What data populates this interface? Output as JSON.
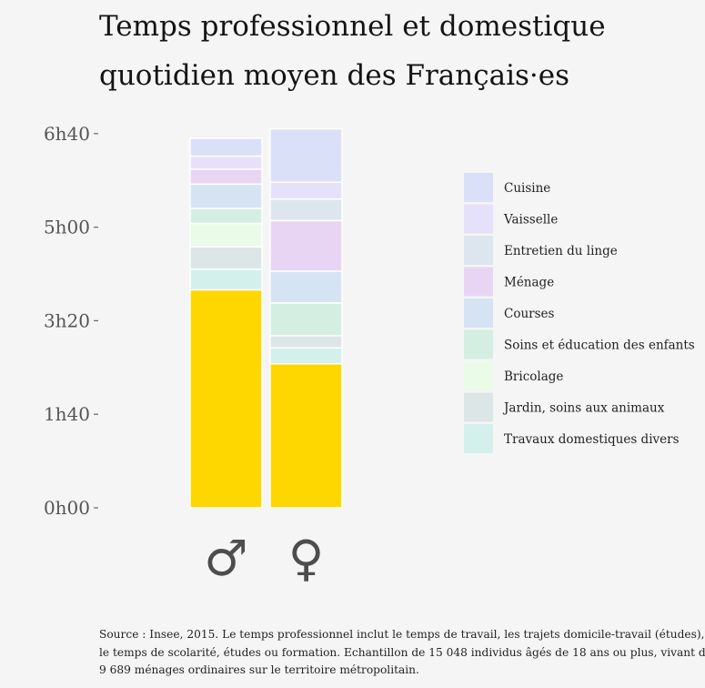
{
  "title": {
    "line1": "Temps professionnel et domestique",
    "line2": "quotidien moyen des Français·es"
  },
  "source": {
    "line1": "Source : Insee, 2015. Le temps professionnel inclut le temps de travail, les trajets domicile-travail (études),",
    "line2": "le temps de scolarité, études ou formation. Echantillon de 15 048 individus âgés de 18 ans ou plus, vivant dans",
    "line3": "9 689 ménages ordinaires sur le territoire métropolitain."
  },
  "chart_data": {
    "type": "bar",
    "stacked": true,
    "categories": [
      "♂",
      "♀"
    ],
    "yticks": [
      {
        "value": 0,
        "label": "0h00"
      },
      {
        "value": 100,
        "label": "1h40"
      },
      {
        "value": 200,
        "label": "3h20"
      },
      {
        "value": 300,
        "label": "5h00"
      },
      {
        "value": 400,
        "label": "6h40"
      }
    ],
    "ylim": [
      0,
      410
    ],
    "unit": "minutes",
    "legend_position": "right",
    "series": [
      {
        "key": "professionnel",
        "color": "#ffd700",
        "values": [
          233,
          154
        ]
      },
      {
        "key": "divers",
        "name": "Travaux domestiques divers",
        "color": "#d4f0ed",
        "values": [
          22,
          17
        ]
      },
      {
        "key": "jardin",
        "name": "Jardin, soins aux animaux",
        "color": "#dce6e6",
        "values": [
          24,
          13
        ]
      },
      {
        "key": "bricolage",
        "name": "Bricolage",
        "color": "#eafbe7",
        "values": [
          25,
          0
        ]
      },
      {
        "key": "soins",
        "name": "Soins et éducation des enfants",
        "color": "#d5eee2",
        "values": [
          16,
          35
        ]
      },
      {
        "key": "courses",
        "name": "Courses",
        "color": "#d5e3f3",
        "values": [
          26,
          34
        ]
      },
      {
        "key": "menage",
        "name": "Ménage",
        "color": "#e8d5f3",
        "values": [
          16,
          54
        ]
      },
      {
        "key": "linge",
        "name": "Entretien du linge",
        "color": "#dde6ee",
        "values": [
          0,
          23
        ]
      },
      {
        "key": "vaisselle",
        "name": "Vaisselle",
        "color": "#e6e1fb",
        "values": [
          14,
          18
        ]
      },
      {
        "key": "cuisine",
        "name": "Cuisine",
        "color": "#d9e0f8",
        "values": [
          19,
          57
        ]
      }
    ]
  }
}
